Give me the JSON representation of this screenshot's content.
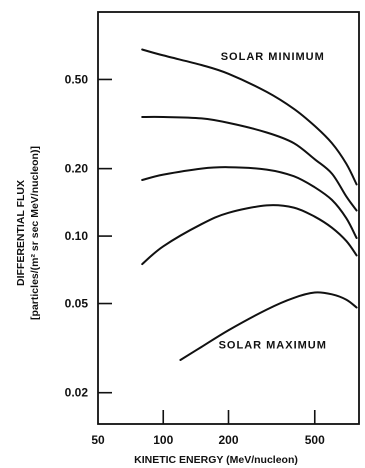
{
  "chart_data": {
    "type": "line",
    "x_scale": "log",
    "y_scale": "log",
    "xlabel": "KINETIC ENERGY (MeV/nucleon)",
    "ylabel_line1": "DIFFERENTIAL FLUX",
    "ylabel_line2": "[particles/(m² sr sec MeV/nucleon)]",
    "xlim": [
      50,
      800
    ],
    "ylim": [
      0.0145,
      1.0
    ],
    "grid": false,
    "x_ticks": [
      {
        "value": 50,
        "label": "50"
      },
      {
        "value": 100,
        "label": "100"
      },
      {
        "value": 200,
        "label": "200"
      },
      {
        "value": 500,
        "label": "500"
      }
    ],
    "y_ticks": [
      {
        "value": 0.02,
        "label": "0.02"
      },
      {
        "value": 0.05,
        "label": "0.05"
      },
      {
        "value": 0.1,
        "label": "0.10"
      },
      {
        "value": 0.2,
        "label": "0.20"
      },
      {
        "value": 0.5,
        "label": "0.50"
      }
    ],
    "annotations": [
      {
        "text": "SOLAR MINIMUM",
        "x": 320,
        "y": 0.61
      },
      {
        "text": "SOLAR MAXIMUM",
        "x": 320,
        "y": 0.0315
      }
    ],
    "series": [
      {
        "x": [
          80,
          100,
          150,
          200,
          300,
          400,
          500,
          600,
          700,
          780
        ],
        "y": [
          0.68,
          0.64,
          0.58,
          0.53,
          0.44,
          0.37,
          0.31,
          0.26,
          0.21,
          0.17
        ]
      },
      {
        "x": [
          80,
          100,
          150,
          200,
          300,
          400,
          500,
          600,
          700,
          780
        ],
        "y": [
          0.34,
          0.34,
          0.335,
          0.32,
          0.29,
          0.26,
          0.22,
          0.19,
          0.15,
          0.13
        ]
      },
      {
        "x": [
          80,
          100,
          150,
          200,
          300,
          400,
          500,
          600,
          700,
          780
        ],
        "y": [
          0.178,
          0.188,
          0.2,
          0.203,
          0.198,
          0.185,
          0.165,
          0.145,
          0.12,
          0.098
        ]
      },
      {
        "x": [
          80,
          100,
          150,
          200,
          300,
          400,
          500,
          600,
          700,
          780
        ],
        "y": [
          0.075,
          0.09,
          0.113,
          0.127,
          0.137,
          0.134,
          0.122,
          0.109,
          0.095,
          0.082
        ]
      },
      {
        "x": [
          120,
          150,
          200,
          300,
          400,
          500,
          600,
          700,
          780
        ],
        "y": [
          0.028,
          0.032,
          0.038,
          0.047,
          0.053,
          0.056,
          0.055,
          0.052,
          0.048
        ]
      }
    ]
  }
}
